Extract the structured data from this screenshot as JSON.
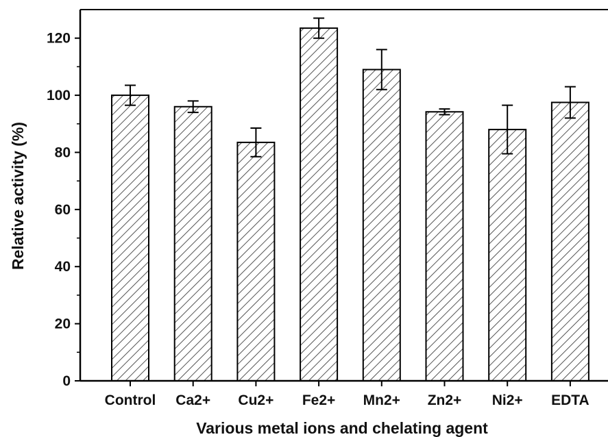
{
  "chart_data": {
    "type": "bar",
    "title": "",
    "xlabel": "Various metal ions and chelating agent",
    "ylabel": "Relative activity (%)",
    "categories": [
      "Control",
      "Ca2+",
      "Cu2+",
      "Fe2+",
      "Mn2+",
      "Zn2+",
      "Ni2+",
      "EDTA"
    ],
    "values": [
      100,
      96,
      83.5,
      123.5,
      109,
      94.2,
      88,
      97.5
    ],
    "errors": [
      3.5,
      2,
      5,
      3.5,
      7,
      1,
      8.5,
      5.5
    ],
    "ylim": [
      0,
      130
    ],
    "yticks": [
      "0",
      "20",
      "40",
      "60",
      "80",
      "100",
      "120"
    ],
    "grid": false,
    "bar_fill": "hatched",
    "colors": {
      "bar_edge": "#000000",
      "hatch": "#555555",
      "axis": "#000000"
    }
  }
}
